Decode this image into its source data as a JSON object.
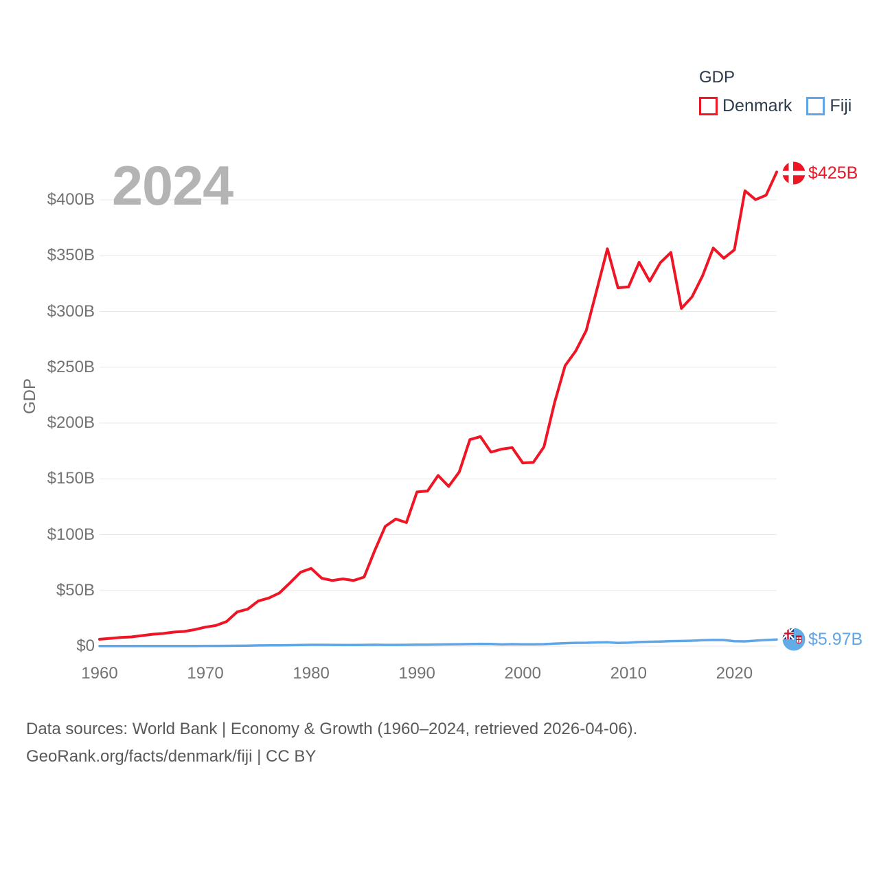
{
  "watermark": "2024",
  "footer": {
    "line1": "Data sources: World Bank | Economy & Growth (1960–2024, retrieved 2026-04-06).",
    "line2": "GeoRank.org/facts/denmark/fiji | CC BY"
  },
  "chart_data": {
    "type": "line",
    "legend_title": "GDP",
    "legend_position": "top-right",
    "ylabel": "GDP",
    "xlabel": "",
    "grid": true,
    "ylim": [
      0,
      425
    ],
    "xlim": [
      1960,
      2024
    ],
    "xticks": [
      1960,
      1970,
      1980,
      1990,
      2000,
      2010,
      2020
    ],
    "ytick_values": [
      0,
      50,
      100,
      150,
      200,
      250,
      300,
      350,
      400
    ],
    "ytick_labels": [
      "$0",
      "$50B",
      "$100B",
      "$150B",
      "$200B",
      "$250B",
      "$300B",
      "$350B",
      "$400B"
    ],
    "x": [
      1960,
      1961,
      1962,
      1963,
      1964,
      1965,
      1966,
      1967,
      1968,
      1969,
      1970,
      1971,
      1972,
      1973,
      1974,
      1975,
      1976,
      1977,
      1978,
      1979,
      1980,
      1981,
      1982,
      1983,
      1984,
      1985,
      1986,
      1987,
      1988,
      1989,
      1990,
      1991,
      1992,
      1993,
      1994,
      1995,
      1996,
      1997,
      1998,
      1999,
      2000,
      2001,
      2002,
      2003,
      2004,
      2005,
      2006,
      2007,
      2008,
      2009,
      2010,
      2011,
      2012,
      2013,
      2014,
      2015,
      2016,
      2017,
      2018,
      2019,
      2020,
      2021,
      2022,
      2023,
      2024
    ],
    "series": [
      {
        "name": "Denmark",
        "color": "#ee1625",
        "unit": "US$ billions",
        "values": [
          6.2,
          7.0,
          7.8,
          8.3,
          9.5,
          10.7,
          11.4,
          12.6,
          13.2,
          14.9,
          17.1,
          18.6,
          22.1,
          30.7,
          33.2,
          40.5,
          43.2,
          47.7,
          56.8,
          66.3,
          69.7,
          60.9,
          58.9,
          60.3,
          58.9,
          61.9,
          85.6,
          107.4,
          114.0,
          110.8,
          138.2,
          139.1,
          153.0,
          143.2,
          156.2,
          185.1,
          187.8,
          173.9,
          176.6,
          178.0,
          164.2,
          164.8,
          178.6,
          218.1,
          251.4,
          264.5,
          282.9,
          319.4,
          356.1,
          321.2,
          322.0,
          344.0,
          327.1,
          343.6,
          352.8,
          302.7,
          313.1,
          332.1,
          356.8,
          347.6,
          355.2,
          408.1,
          400.2,
          404.2,
          424.9
        ]
      },
      {
        "name": "Fiji",
        "color": "#60a5e5",
        "unit": "US$ billions",
        "values": [
          0.11,
          0.12,
          0.13,
          0.14,
          0.15,
          0.16,
          0.17,
          0.18,
          0.2,
          0.21,
          0.22,
          0.25,
          0.31,
          0.38,
          0.49,
          0.68,
          0.75,
          0.8,
          0.94,
          1.12,
          1.2,
          1.24,
          1.17,
          1.1,
          1.12,
          1.14,
          1.29,
          1.19,
          1.14,
          1.22,
          1.33,
          1.38,
          1.53,
          1.64,
          1.76,
          1.93,
          2.07,
          2.06,
          1.58,
          1.82,
          1.68,
          1.65,
          1.86,
          2.28,
          2.72,
          3.01,
          3.1,
          3.4,
          3.52,
          2.87,
          3.14,
          3.77,
          3.97,
          4.19,
          4.54,
          4.68,
          4.93,
          5.35,
          5.58,
          5.54,
          4.48,
          4.3,
          4.98,
          5.55,
          5.97
        ]
      }
    ],
    "end_value_labels": [
      "$425B",
      "$5.97B"
    ]
  }
}
